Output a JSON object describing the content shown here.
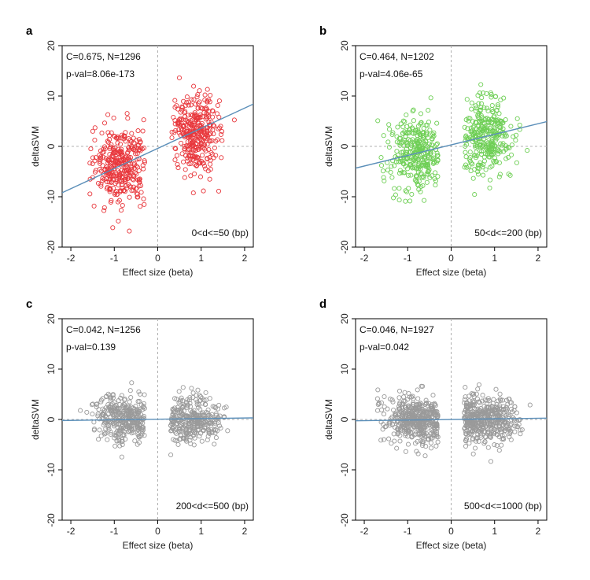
{
  "colors": {
    "red": "#e8383d",
    "green": "#6fcf56",
    "gray": "#9a9a9a",
    "fit": "#5b8fb9"
  },
  "chart_data": [
    {
      "type": "scatter",
      "letter": "a",
      "xlabel": "Effect size (beta)",
      "ylabel": "deltaSVM",
      "xlim": [
        -2.2,
        2.2
      ],
      "ylim": [
        -20,
        20
      ],
      "xticks": [
        -2,
        -1,
        0,
        1,
        2
      ],
      "yticks": [
        -20,
        -10,
        0,
        10,
        20
      ],
      "stat_line1": "C=0.675, N=1296",
      "stat_line2": "p-val=8.06e-173",
      "range_label": "0<d<=50 (bp)",
      "color": "red",
      "fit": {
        "slope": 4.0,
        "intercept": -0.4
      },
      "cloud": {
        "seed": 11,
        "n_neg": 340,
        "n_pos": 330,
        "neg_x_mean": -0.85,
        "pos_x_mean": 0.85,
        "x_sd": 0.28,
        "neg_y_mean": -3.5,
        "pos_y_mean": 3.0,
        "y_sd": 4.2
      }
    },
    {
      "type": "scatter",
      "letter": "b",
      "xlabel": "Effect size (beta)",
      "ylabel": "deltaSVM",
      "xlim": [
        -2.2,
        2.2
      ],
      "ylim": [
        -20,
        20
      ],
      "xticks": [
        -2,
        -1,
        0,
        1,
        2
      ],
      "yticks": [
        -20,
        -10,
        0,
        10,
        20
      ],
      "stat_line1": "C=0.464, N=1202",
      "stat_line2": "p-val=4.06e-65",
      "range_label": "50<d<=200 (bp)",
      "color": "green",
      "fit": {
        "slope": 2.1,
        "intercept": 0.3
      },
      "cloud": {
        "seed": 23,
        "n_neg": 320,
        "n_pos": 320,
        "neg_x_mean": -0.8,
        "pos_x_mean": 0.8,
        "x_sd": 0.3,
        "neg_y_mean": -1.2,
        "pos_y_mean": 1.8,
        "y_sd": 3.8
      }
    },
    {
      "type": "scatter",
      "letter": "c",
      "xlabel": "Effect size (beta)",
      "ylabel": "deltaSVM",
      "xlim": [
        -2.2,
        2.2
      ],
      "ylim": [
        -20,
        20
      ],
      "xticks": [
        -2,
        -1,
        0,
        1,
        2
      ],
      "yticks": [
        -20,
        -10,
        0,
        10,
        20
      ],
      "stat_line1": "C=0.042, N=1256",
      "stat_line2": "p-val=0.139",
      "range_label": "200<d<=500 (bp)",
      "color": "gray",
      "fit": {
        "slope": 0.12,
        "intercept": 0.05
      },
      "cloud": {
        "seed": 37,
        "n_neg": 330,
        "n_pos": 320,
        "neg_x_mean": -0.8,
        "pos_x_mean": 0.8,
        "x_sd": 0.35,
        "neg_y_mean": 0.0,
        "pos_y_mean": 0.0,
        "y_sd": 2.4
      }
    },
    {
      "type": "scatter",
      "letter": "d",
      "xlabel": "Effect size (beta)",
      "ylabel": "deltaSVM",
      "xlim": [
        -2.2,
        2.2
      ],
      "ylim": [
        -20,
        20
      ],
      "xticks": [
        -2,
        -1,
        0,
        1,
        2
      ],
      "yticks": [
        -20,
        -10,
        0,
        10,
        20
      ],
      "stat_line1": "C=0.046, N=1927",
      "stat_line2": "p-val=0.042",
      "range_label": "500<d<=1000 (bp)",
      "color": "gray",
      "fit": {
        "slope": 0.12,
        "intercept": 0.0
      },
      "cloud": {
        "seed": 53,
        "n_neg": 460,
        "n_pos": 450,
        "neg_x_mean": -0.8,
        "pos_x_mean": 0.8,
        "x_sd": 0.35,
        "neg_y_mean": 0.0,
        "pos_y_mean": 0.0,
        "y_sd": 2.4
      }
    }
  ]
}
